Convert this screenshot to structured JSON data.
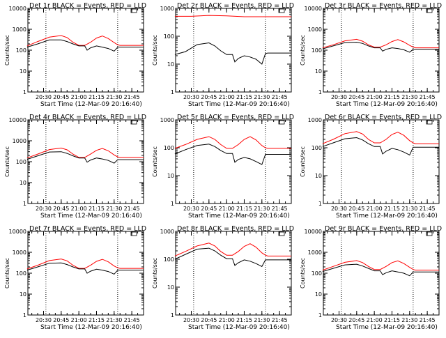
{
  "chart_data": [
    {
      "type": "line",
      "title": "Det 1r BLACK = Events, RED = LLD",
      "xlabel": "Start Time (12-Mar-09 20:16:40)",
      "ylabel": "Counts/sec",
      "yscale": "log",
      "ylim": [
        1,
        10000
      ],
      "yticks": [
        "1",
        "10",
        "100",
        "1000",
        "10000"
      ],
      "xticks": [
        "20:30",
        "20:45",
        "21:00",
        "21:15",
        "21:30",
        "21:45"
      ],
      "xlim": [
        "20:16:40",
        "21:55:00"
      ],
      "vlines": [
        "20:32",
        "21:33"
      ],
      "legend_box": "top-right",
      "series": [
        {
          "color": "#ff0000",
          "x": [
            "20:16",
            "20:25",
            "20:35",
            "20:45",
            "20:50",
            "20:55",
            "21:00",
            "21:05",
            "21:10",
            "21:15",
            "21:20",
            "21:25",
            "21:30",
            "21:33",
            "21:35",
            "21:40",
            "21:45",
            "21:55"
          ],
          "y": [
            160,
            260,
            420,
            500,
            400,
            240,
            170,
            170,
            240,
            380,
            480,
            360,
            230,
            180,
            170,
            170,
            170,
            170
          ]
        },
        {
          "color": "#000000",
          "x": [
            "20:16",
            "20:25",
            "20:35",
            "20:45",
            "20:50",
            "20:55",
            "21:00",
            "21:05",
            "21:07",
            "21:10",
            "21:15",
            "21:20",
            "21:25",
            "21:30",
            "21:33",
            "21:35",
            "21:40",
            "21:45",
            "21:55"
          ],
          "y": [
            140,
            200,
            310,
            310,
            260,
            200,
            160,
            160,
            100,
            130,
            160,
            140,
            120,
            90,
            140,
            140,
            140,
            140,
            140
          ]
        }
      ]
    },
    {
      "type": "line",
      "title": "Det 2r BLACK = Events, RED = LLD",
      "xlabel": "Start Time (12-Mar-09 20:16:40)",
      "ylabel": "Counts/sec",
      "yscale": "log",
      "ylim": [
        1,
        1000
      ],
      "yticks": [
        "1",
        "10",
        "100",
        "1000"
      ],
      "xticks": [
        "20:30",
        "20:45",
        "21:00",
        "21:15",
        "21:30",
        "21:45"
      ],
      "xlim": [
        "20:16:40",
        "21:55:00"
      ],
      "vlines": [
        "20:32",
        "21:33"
      ],
      "legend_box": "top-right",
      "series": [
        {
          "color": "#ff0000",
          "x": [
            "20:16",
            "20:30",
            "20:45",
            "21:00",
            "21:15",
            "21:30",
            "21:45",
            "21:55"
          ],
          "y": [
            520,
            520,
            560,
            540,
            500,
            500,
            500,
            500
          ]
        },
        {
          "color": "#000000",
          "x": [
            "20:16",
            "20:25",
            "20:35",
            "20:45",
            "20:50",
            "20:55",
            "21:00",
            "21:05",
            "21:07",
            "21:10",
            "21:15",
            "21:20",
            "21:25",
            "21:30",
            "21:33",
            "21:35",
            "21:40",
            "21:45",
            "21:55"
          ],
          "y": [
            22,
            28,
            50,
            58,
            45,
            30,
            22,
            22,
            12,
            16,
            20,
            18,
            15,
            10,
            24,
            25,
            25,
            25,
            25
          ]
        }
      ]
    },
    {
      "type": "line",
      "title": "Det 3r BLACK = Events, RED = LLD",
      "xlabel": "Start Time (12-Mar-09 20:16:40)",
      "ylabel": "Counts/sec",
      "yscale": "log",
      "ylim": [
        1,
        10000
      ],
      "yticks": [
        "1",
        "10",
        "100",
        "1000",
        "10000"
      ],
      "xticks": [
        "20:30",
        "20:45",
        "21:00",
        "21:15",
        "21:30",
        "21:45"
      ],
      "xlim": [
        "20:16:40",
        "21:55:00"
      ],
      "vlines": [
        "20:32",
        "21:33"
      ],
      "legend_box": "top-right",
      "series": [
        {
          "color": "#ff0000",
          "x": [
            "20:16",
            "20:25",
            "20:35",
            "20:45",
            "20:50",
            "20:55",
            "21:00",
            "21:05",
            "21:10",
            "21:15",
            "21:20",
            "21:25",
            "21:30",
            "21:33",
            "21:35",
            "21:40",
            "21:45",
            "21:55"
          ],
          "y": [
            130,
            180,
            280,
            330,
            270,
            180,
            140,
            140,
            180,
            260,
            320,
            250,
            170,
            140,
            130,
            130,
            130,
            130
          ]
        },
        {
          "color": "#000000",
          "x": [
            "20:16",
            "20:25",
            "20:35",
            "20:45",
            "20:50",
            "20:55",
            "21:00",
            "21:05",
            "21:07",
            "21:10",
            "21:15",
            "21:20",
            "21:25",
            "21:30",
            "21:33",
            "21:35",
            "21:40",
            "21:45",
            "21:55"
          ],
          "y": [
            115,
            160,
            230,
            240,
            210,
            160,
            130,
            130,
            90,
            110,
            130,
            120,
            105,
            80,
            110,
            110,
            110,
            110,
            110
          ]
        }
      ]
    },
    {
      "type": "line",
      "title": "Det 4r BLACK = Events, RED = LLD",
      "xlabel": "Start Time (12-Mar-09 20:16:40)",
      "ylabel": "Counts/sec",
      "yscale": "log",
      "ylim": [
        1,
        10000
      ],
      "yticks": [
        "1",
        "10",
        "100",
        "1000",
        "10000"
      ],
      "xticks": [
        "20:30",
        "20:45",
        "21:00",
        "21:15",
        "21:30",
        "21:45"
      ],
      "xlim": [
        "20:16:40",
        "21:55:00"
      ],
      "vlines": [
        "20:32",
        "21:33"
      ],
      "legend_box": "top-right",
      "series": [
        {
          "color": "#ff0000",
          "x": [
            "20:16",
            "20:25",
            "20:35",
            "20:45",
            "20:50",
            "20:55",
            "21:00",
            "21:05",
            "21:10",
            "21:15",
            "21:20",
            "21:25",
            "21:30",
            "21:33",
            "21:35",
            "21:40",
            "21:45",
            "21:55"
          ],
          "y": [
            150,
            230,
            380,
            450,
            370,
            230,
            160,
            160,
            230,
            350,
            430,
            330,
            210,
            170,
            160,
            160,
            160,
            160
          ]
        },
        {
          "color": "#000000",
          "x": [
            "20:16",
            "20:25",
            "20:35",
            "20:45",
            "20:50",
            "20:55",
            "21:00",
            "21:05",
            "21:07",
            "21:10",
            "21:15",
            "21:20",
            "21:25",
            "21:30",
            "21:33",
            "21:35",
            "21:40",
            "21:45",
            "21:55"
          ],
          "y": [
            130,
            190,
            290,
            300,
            250,
            190,
            150,
            150,
            95,
            120,
            150,
            135,
            115,
            85,
            125,
            125,
            125,
            125,
            125
          ]
        }
      ]
    },
    {
      "type": "line",
      "title": "Det 5r BLACK = Events, RED = LLD",
      "xlabel": "Start Time (12-Mar-09 20:16:40)",
      "ylabel": "Counts/sec",
      "yscale": "log",
      "ylim": [
        1,
        1000
      ],
      "yticks": [
        "1",
        "10",
        "100",
        "1000"
      ],
      "xticks": [
        "20:30",
        "20:45",
        "21:00",
        "21:15",
        "21:30",
        "21:45"
      ],
      "xlim": [
        "20:16:40",
        "21:55:00"
      ],
      "vlines": [
        "20:32",
        "21:33"
      ],
      "legend_box": "top-right",
      "series": [
        {
          "color": "#ff0000",
          "x": [
            "20:16",
            "20:25",
            "20:35",
            "20:45",
            "20:50",
            "20:55",
            "21:00",
            "21:05",
            "21:10",
            "21:15",
            "21:20",
            "21:25",
            "21:30",
            "21:33",
            "21:35",
            "21:40",
            "21:45",
            "21:55"
          ],
          "y": [
            95,
            130,
            200,
            250,
            200,
            130,
            95,
            95,
            130,
            200,
            250,
            190,
            120,
            100,
            95,
            95,
            95,
            95
          ]
        },
        {
          "color": "#000000",
          "x": [
            "20:16",
            "20:25",
            "20:35",
            "20:45",
            "20:50",
            "20:55",
            "21:00",
            "21:05",
            "21:07",
            "21:10",
            "21:15",
            "21:20",
            "21:25",
            "21:30",
            "21:33",
            "21:35",
            "21:40",
            "21:45",
            "21:55"
          ],
          "y": [
            60,
            85,
            120,
            135,
            110,
            80,
            62,
            62,
            30,
            38,
            45,
            40,
            32,
            25,
            58,
            58,
            58,
            58,
            58
          ]
        }
      ]
    },
    {
      "type": "line",
      "title": "Det 6r BLACK = Events, RED = LLD",
      "xlabel": "Start Time (12-Mar-09 20:16:40)",
      "ylabel": "Counts/sec",
      "yscale": "log",
      "ylim": [
        1,
        1000
      ],
      "yticks": [
        "1",
        "10",
        "100",
        "1000"
      ],
      "xticks": [
        "20:30",
        "20:45",
        "21:00",
        "21:15",
        "21:30",
        "21:45"
      ],
      "xlim": [
        "20:16:40",
        "21:55:00"
      ],
      "vlines": [
        "20:32",
        "21:33"
      ],
      "legend_box": "top-right",
      "series": [
        {
          "color": "#ff0000",
          "x": [
            "20:16",
            "20:25",
            "20:35",
            "20:45",
            "20:50",
            "20:55",
            "21:00",
            "21:05",
            "21:10",
            "21:15",
            "21:20",
            "21:25",
            "21:30",
            "21:33",
            "21:35",
            "21:40",
            "21:45",
            "21:55"
          ],
          "y": [
            140,
            200,
            320,
            380,
            310,
            200,
            150,
            150,
            200,
            300,
            360,
            280,
            180,
            150,
            140,
            140,
            140,
            140
          ]
        },
        {
          "color": "#000000",
          "x": [
            "20:16",
            "20:25",
            "20:35",
            "20:45",
            "20:50",
            "20:55",
            "21:00",
            "21:05",
            "21:07",
            "21:10",
            "21:15",
            "21:20",
            "21:25",
            "21:30",
            "21:33",
            "21:35",
            "21:40",
            "21:45",
            "21:55"
          ],
          "y": [
            110,
            150,
            210,
            230,
            190,
            140,
            110,
            110,
            60,
            75,
            95,
            85,
            70,
            55,
            105,
            105,
            105,
            105,
            105
          ]
        }
      ]
    },
    {
      "type": "line",
      "title": "Det 7r BLACK = Events, RED = LLD",
      "xlabel": "Start Time (12-Mar-09 20:16:40)",
      "ylabel": "Counts/sec",
      "yscale": "log",
      "ylim": [
        1,
        10000
      ],
      "yticks": [
        "1",
        "10",
        "100",
        "1000",
        "10000"
      ],
      "xticks": [
        "20:30",
        "20:45",
        "21:00",
        "21:15",
        "21:30",
        "21:45"
      ],
      "xlim": [
        "20:16:40",
        "21:55:00"
      ],
      "vlines": [
        "20:32",
        "21:33"
      ],
      "legend_box": "top-right",
      "series": [
        {
          "color": "#ff0000",
          "x": [
            "20:16",
            "20:25",
            "20:35",
            "20:45",
            "20:50",
            "20:55",
            "21:00",
            "21:05",
            "21:10",
            "21:15",
            "21:20",
            "21:25",
            "21:30",
            "21:33",
            "21:35",
            "21:40",
            "21:45",
            "21:55"
          ],
          "y": [
            160,
            240,
            400,
            480,
            390,
            240,
            170,
            170,
            240,
            370,
            460,
            350,
            220,
            180,
            170,
            170,
            170,
            170
          ]
        },
        {
          "color": "#000000",
          "x": [
            "20:16",
            "20:25",
            "20:35",
            "20:45",
            "20:50",
            "20:55",
            "21:00",
            "21:05",
            "21:07",
            "21:10",
            "21:15",
            "21:20",
            "21:25",
            "21:30",
            "21:33",
            "21:35",
            "21:40",
            "21:45",
            "21:55"
          ],
          "y": [
            140,
            200,
            300,
            310,
            260,
            200,
            160,
            160,
            100,
            125,
            155,
            140,
            120,
            90,
            140,
            140,
            140,
            140,
            140
          ]
        }
      ]
    },
    {
      "type": "line",
      "title": "Det 8r BLACK = Events, RED = LLD",
      "xlabel": "Start Time (12-Mar-09 20:16:40)",
      "ylabel": "Counts/sec",
      "yscale": "log",
      "ylim": [
        1,
        1000
      ],
      "yticks": [
        "1",
        "10",
        "100",
        "1000"
      ],
      "xticks": [
        "20:30",
        "20:45",
        "21:00",
        "21:15",
        "21:30",
        "21:45"
      ],
      "xlim": [
        "20:16:40",
        "21:55:00"
      ],
      "vlines": [
        "20:32",
        "21:33"
      ],
      "legend_box": "top-right",
      "series": [
        {
          "color": "#ff0000",
          "x": [
            "20:16",
            "20:25",
            "20:35",
            "20:45",
            "20:50",
            "20:55",
            "21:00",
            "21:05",
            "21:10",
            "21:15",
            "21:20",
            "21:25",
            "21:30",
            "21:33",
            "21:35",
            "21:40",
            "21:45",
            "21:55"
          ],
          "y": [
            130,
            190,
            300,
            380,
            300,
            190,
            140,
            140,
            190,
            290,
            360,
            270,
            170,
            140,
            130,
            130,
            130,
            130
          ]
        },
        {
          "color": "#000000",
          "x": [
            "20:16",
            "20:25",
            "20:35",
            "20:45",
            "20:50",
            "20:55",
            "21:00",
            "21:05",
            "21:07",
            "21:10",
            "21:15",
            "21:20",
            "21:25",
            "21:30",
            "21:33",
            "21:35",
            "21:40",
            "21:45",
            "21:55"
          ],
          "y": [
            100,
            150,
            230,
            250,
            200,
            140,
            105,
            105,
            60,
            75,
            95,
            85,
            70,
            55,
            95,
            95,
            95,
            95,
            95
          ]
        }
      ]
    },
    {
      "type": "line",
      "title": "Det 9r BLACK = Events, RED = LLD",
      "xlabel": "Start Time (12-Mar-09 20:16:40)",
      "ylabel": "Counts/sec",
      "yscale": "log",
      "ylim": [
        1,
        10000
      ],
      "yticks": [
        "1",
        "10",
        "100",
        "1000",
        "10000"
      ],
      "xticks": [
        "20:30",
        "20:45",
        "21:00",
        "21:15",
        "21:30",
        "21:45"
      ],
      "xlim": [
        "20:16:40",
        "21:55:00"
      ],
      "vlines": [
        "20:32",
        "21:33"
      ],
      "legend_box": "top-right",
      "series": [
        {
          "color": "#ff0000",
          "x": [
            "20:16",
            "20:25",
            "20:35",
            "20:45",
            "20:50",
            "20:55",
            "21:00",
            "21:05",
            "21:10",
            "21:15",
            "21:20",
            "21:25",
            "21:30",
            "21:33",
            "21:35",
            "21:40",
            "21:45",
            "21:55"
          ],
          "y": [
            140,
            210,
            330,
            400,
            320,
            210,
            150,
            150,
            210,
            320,
            390,
            290,
            190,
            150,
            140,
            140,
            140,
            140
          ]
        },
        {
          "color": "#000000",
          "x": [
            "20:16",
            "20:25",
            "20:35",
            "20:45",
            "20:50",
            "20:55",
            "21:00",
            "21:05",
            "21:07",
            "21:10",
            "21:15",
            "21:20",
            "21:25",
            "21:30",
            "21:33",
            "21:35",
            "21:40",
            "21:45",
            "21:55"
          ],
          "y": [
            120,
            170,
            250,
            270,
            220,
            170,
            130,
            130,
            85,
            105,
            130,
            115,
            100,
            75,
            115,
            115,
            115,
            115,
            115
          ]
        }
      ]
    }
  ]
}
